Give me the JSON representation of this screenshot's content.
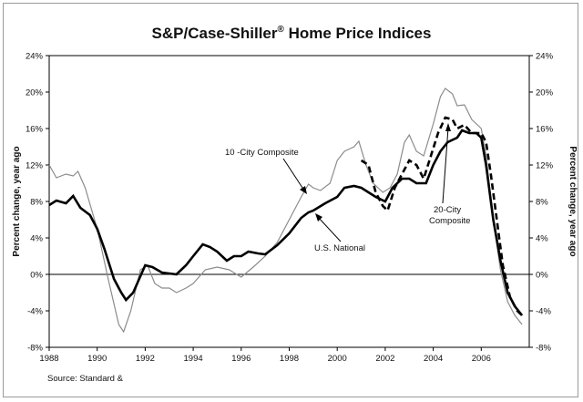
{
  "chart_data": {
    "type": "line",
    "title": {
      "main": "S&P/Case-Shiller",
      "reg": "®",
      "rest": " Home Price Indices"
    },
    "ylabel_left": "Percent change, year ago",
    "ylabel_right": "Percent change, year ago",
    "xlim": [
      1988,
      2008
    ],
    "ylim": [
      -8,
      24
    ],
    "x_ticks": [
      {
        "value": 1988,
        "label": "1988"
      },
      {
        "value": 1990,
        "label": "1990"
      },
      {
        "value": 1992,
        "label": "1992"
      },
      {
        "value": 1994,
        "label": "1994"
      },
      {
        "value": 1996,
        "label": "1996"
      },
      {
        "value": 1998,
        "label": "1998"
      },
      {
        "value": 2000,
        "label": "2000"
      },
      {
        "value": 2002,
        "label": "2002"
      },
      {
        "value": 2004,
        "label": "2004"
      },
      {
        "value": 2006,
        "label": "2006"
      }
    ],
    "y_ticks": [
      {
        "value": 24,
        "label": "24%"
      },
      {
        "value": 20,
        "label": "20%"
      },
      {
        "value": 16,
        "label": "16%"
      },
      {
        "value": 12,
        "label": "12%"
      },
      {
        "value": 8,
        "label": "8%"
      },
      {
        "value": 4,
        "label": "4%"
      },
      {
        "value": 0,
        "label": "0%"
      },
      {
        "value": -4,
        "label": "-4%"
      },
      {
        "value": -8,
        "label": "-8%"
      }
    ],
    "series": [
      {
        "name": "10 -City Composite",
        "key": "city10",
        "color": "#8c8c8c",
        "points": [
          [
            1988.0,
            12.0
          ],
          [
            1988.3,
            10.6
          ],
          [
            1988.7,
            11.0
          ],
          [
            1989.0,
            10.8
          ],
          [
            1989.2,
            11.3
          ],
          [
            1989.5,
            9.5
          ],
          [
            1990.0,
            5.0
          ],
          [
            1990.5,
            -1.0
          ],
          [
            1990.9,
            -5.5
          ],
          [
            1991.1,
            -6.3
          ],
          [
            1991.4,
            -4.0
          ],
          [
            1991.8,
            0.5
          ],
          [
            1992.1,
            1.0
          ],
          [
            1992.4,
            -1.0
          ],
          [
            1992.7,
            -1.5
          ],
          [
            1993.0,
            -1.5
          ],
          [
            1993.3,
            -2.0
          ],
          [
            1993.7,
            -1.5
          ],
          [
            1994.0,
            -1.0
          ],
          [
            1994.5,
            0.5
          ],
          [
            1995.0,
            0.8
          ],
          [
            1995.5,
            0.5
          ],
          [
            1996.0,
            -0.3
          ],
          [
            1996.5,
            0.8
          ],
          [
            1997.0,
            2.0
          ],
          [
            1997.5,
            3.5
          ],
          [
            1998.0,
            6.0
          ],
          [
            1998.5,
            8.5
          ],
          [
            1998.8,
            9.9
          ],
          [
            1999.0,
            9.5
          ],
          [
            1999.3,
            9.2
          ],
          [
            1999.7,
            10.0
          ],
          [
            2000.0,
            12.5
          ],
          [
            2000.3,
            13.5
          ],
          [
            2000.7,
            14.0
          ],
          [
            2000.9,
            14.6
          ],
          [
            2001.2,
            12.0
          ],
          [
            2001.5,
            10.0
          ],
          [
            2001.9,
            9.0
          ],
          [
            2002.2,
            9.5
          ],
          [
            2002.5,
            11.0
          ],
          [
            2002.8,
            14.5
          ],
          [
            2003.0,
            15.3
          ],
          [
            2003.3,
            13.5
          ],
          [
            2003.6,
            13.0
          ],
          [
            2004.0,
            16.5
          ],
          [
            2004.3,
            19.5
          ],
          [
            2004.5,
            20.4
          ],
          [
            2004.8,
            19.8
          ],
          [
            2005.0,
            18.5
          ],
          [
            2005.3,
            18.6
          ],
          [
            2005.6,
            17.0
          ],
          [
            2006.0,
            16.0
          ],
          [
            2006.2,
            13.0
          ],
          [
            2006.5,
            6.0
          ],
          [
            2006.8,
            0.5
          ],
          [
            2007.1,
            -3.0
          ],
          [
            2007.4,
            -4.5
          ],
          [
            2007.7,
            -5.5
          ]
        ]
      },
      {
        "name": "20-City Composite",
        "label": [
          "20-City",
          "Composite"
        ],
        "key": "city20",
        "color": "#000000",
        "points": [
          [
            2001.0,
            12.5
          ],
          [
            2001.3,
            12.0
          ],
          [
            2001.6,
            9.0
          ],
          [
            2001.9,
            7.5
          ],
          [
            2002.1,
            7.0
          ],
          [
            2002.4,
            9.5
          ],
          [
            2002.7,
            11.0
          ],
          [
            2003.0,
            12.5
          ],
          [
            2003.3,
            12.0
          ],
          [
            2003.6,
            10.5
          ],
          [
            2003.9,
            13.0
          ],
          [
            2004.2,
            15.5
          ],
          [
            2004.5,
            17.2
          ],
          [
            2004.8,
            17.0
          ],
          [
            2005.0,
            16.0
          ],
          [
            2005.3,
            16.4
          ],
          [
            2005.6,
            15.5
          ],
          [
            2006.0,
            15.5
          ],
          [
            2006.2,
            14.5
          ],
          [
            2006.4,
            11.0
          ],
          [
            2006.7,
            5.0
          ],
          [
            2006.9,
            1.0
          ],
          [
            2007.2,
            -2.5
          ],
          [
            2007.5,
            -4.0
          ],
          [
            2007.7,
            -4.5
          ]
        ]
      },
      {
        "name": "U.S. National",
        "key": "national",
        "color": "#000000",
        "points": [
          [
            1988.0,
            7.6
          ],
          [
            1988.3,
            8.1
          ],
          [
            1988.7,
            7.8
          ],
          [
            1989.0,
            8.6
          ],
          [
            1989.3,
            7.3
          ],
          [
            1989.7,
            6.5
          ],
          [
            1990.0,
            5.0
          ],
          [
            1990.3,
            2.8
          ],
          [
            1990.7,
            -0.5
          ],
          [
            1991.0,
            -2.0
          ],
          [
            1991.2,
            -2.8
          ],
          [
            1991.5,
            -2.0
          ],
          [
            1992.0,
            1.0
          ],
          [
            1992.3,
            0.8
          ],
          [
            1992.7,
            0.2
          ],
          [
            1993.0,
            0.1
          ],
          [
            1993.3,
            0.0
          ],
          [
            1993.7,
            1.0
          ],
          [
            1994.0,
            2.0
          ],
          [
            1994.4,
            3.3
          ],
          [
            1994.7,
            3.0
          ],
          [
            1995.0,
            2.5
          ],
          [
            1995.4,
            1.5
          ],
          [
            1995.7,
            2.0
          ],
          [
            1996.0,
            2.0
          ],
          [
            1996.3,
            2.5
          ],
          [
            1996.7,
            2.3
          ],
          [
            1997.0,
            2.2
          ],
          [
            1997.5,
            3.2
          ],
          [
            1998.0,
            4.5
          ],
          [
            1998.5,
            6.2
          ],
          [
            1998.8,
            6.8
          ],
          [
            1999.0,
            7.0
          ],
          [
            1999.5,
            7.8
          ],
          [
            2000.0,
            8.5
          ],
          [
            2000.3,
            9.5
          ],
          [
            2000.7,
            9.7
          ],
          [
            2001.0,
            9.5
          ],
          [
            2001.3,
            9.0
          ],
          [
            2001.6,
            8.5
          ],
          [
            2002.0,
            8.0
          ],
          [
            2002.3,
            9.5
          ],
          [
            2002.7,
            10.5
          ],
          [
            2003.0,
            10.5
          ],
          [
            2003.3,
            10.0
          ],
          [
            2003.7,
            10.0
          ],
          [
            2004.0,
            12.0
          ],
          [
            2004.3,
            13.5
          ],
          [
            2004.6,
            14.5
          ],
          [
            2005.0,
            15.0
          ],
          [
            2005.2,
            15.8
          ],
          [
            2005.5,
            15.5
          ],
          [
            2005.8,
            15.5
          ],
          [
            2006.0,
            15.0
          ],
          [
            2006.2,
            12.0
          ],
          [
            2006.5,
            6.0
          ],
          [
            2006.8,
            1.5
          ],
          [
            2007.1,
            -2.0
          ],
          [
            2007.4,
            -3.5
          ],
          [
            2007.7,
            -4.5
          ]
        ]
      }
    ],
    "annotations": {
      "city10": "10 -City Composite",
      "national": "U.S. National",
      "city20_line1": "20-City",
      "city20_line2": "Composite"
    },
    "source": "Source: Standard &"
  }
}
